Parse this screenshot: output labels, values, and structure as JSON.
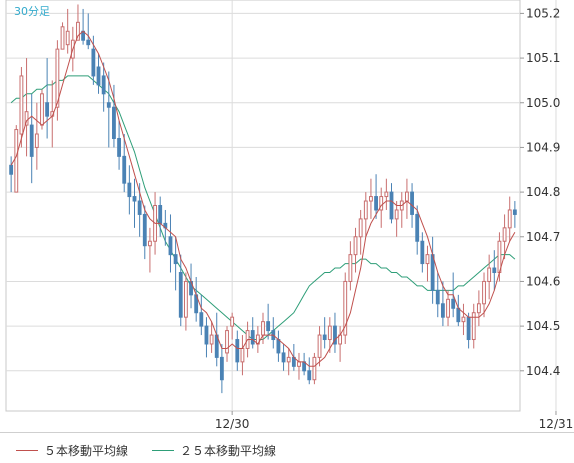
{
  "chart_data": {
    "type": "candlestick",
    "period_label": "30分足",
    "y_ticks": [
      105.2,
      105.1,
      105.0,
      104.9,
      104.8,
      104.7,
      104.6,
      104.5,
      104.4
    ],
    "y_tick_labels": [
      "105.2",
      "105.1",
      "105.0",
      "104.9",
      "104.8",
      "104.7",
      "104.6",
      "104.5",
      "104.4"
    ],
    "ylim": [
      104.31,
      105.23
    ],
    "x_tick_labels": [
      {
        "index": 43,
        "label": "12/30"
      },
      {
        "index": 106,
        "label": "12/31"
      }
    ],
    "colors": {
      "up": "#c86e6e",
      "down": "#4a82b4",
      "ma5": "#c0504d",
      "ma25": "#2e9e78",
      "period_label": "#33aacc",
      "grid": "#dcdcdc"
    },
    "candles": [
      [
        104.86,
        104.88,
        104.8,
        104.84
      ],
      [
        104.8,
        104.95,
        104.8,
        104.94
      ],
      [
        104.93,
        105.08,
        104.9,
        105.06
      ],
      [
        104.95,
        105.1,
        104.88,
        104.98
      ],
      [
        104.95,
        105.02,
        104.82,
        104.88
      ],
      [
        104.9,
        105.0,
        104.85,
        104.93
      ],
      [
        104.95,
        105.03,
        104.94,
        105.02
      ],
      [
        105.0,
        105.1,
        104.92,
        104.97
      ],
      [
        104.97,
        105.05,
        104.9,
        104.98
      ],
      [
        104.99,
        105.14,
        104.96,
        105.12
      ],
      [
        105.12,
        105.18,
        105.12,
        105.17
      ],
      [
        105.13,
        105.21,
        105.11,
        105.16
      ],
      [
        105.1,
        105.17,
        105.07,
        105.14
      ],
      [
        105.14,
        105.22,
        105.14,
        105.18
      ],
      [
        105.16,
        105.21,
        105.13,
        105.14
      ],
      [
        105.14,
        105.2,
        105.12,
        105.13
      ],
      [
        105.12,
        105.15,
        105.04,
        105.06
      ],
      [
        105.08,
        105.11,
        105.02,
        105.04
      ],
      [
        105.06,
        105.09,
        104.98,
        105.02
      ],
      [
        105.0,
        105.07,
        104.9,
        104.99
      ],
      [
        104.99,
        105.04,
        104.9,
        104.92
      ],
      [
        104.92,
        104.96,
        104.85,
        104.88
      ],
      [
        104.88,
        104.93,
        104.8,
        104.82
      ],
      [
        104.82,
        104.86,
        104.75,
        104.79
      ],
      [
        104.79,
        104.83,
        104.72,
        104.78
      ],
      [
        104.78,
        104.82,
        104.7,
        104.75
      ],
      [
        104.75,
        104.77,
        104.65,
        104.68
      ],
      [
        104.68,
        104.72,
        104.62,
        104.69
      ],
      [
        104.69,
        104.8,
        104.66,
        104.77
      ],
      [
        104.77,
        104.79,
        104.7,
        104.73
      ],
      [
        104.73,
        104.76,
        104.68,
        104.72
      ],
      [
        104.7,
        104.75,
        104.62,
        104.66
      ],
      [
        104.66,
        104.7,
        104.58,
        104.64
      ],
      [
        104.62,
        104.66,
        104.5,
        104.52
      ],
      [
        104.52,
        104.62,
        104.49,
        104.6
      ],
      [
        104.6,
        104.64,
        104.54,
        104.57
      ],
      [
        104.57,
        104.61,
        104.51,
        104.53
      ],
      [
        104.53,
        104.57,
        104.48,
        104.5
      ],
      [
        104.5,
        104.52,
        104.43,
        104.46
      ],
      [
        104.46,
        104.51,
        104.44,
        104.48
      ],
      [
        104.48,
        104.53,
        104.41,
        104.43
      ],
      [
        104.43,
        104.46,
        104.35,
        104.38
      ],
      [
        104.44,
        104.5,
        104.42,
        104.49
      ],
      [
        104.5,
        104.53,
        104.47,
        104.52
      ],
      [
        104.47,
        104.49,
        104.4,
        104.42
      ],
      [
        104.42,
        104.48,
        104.39,
        104.45
      ],
      [
        104.45,
        104.51,
        104.43,
        104.49
      ],
      [
        104.49,
        104.52,
        104.45,
        104.46
      ],
      [
        104.46,
        104.5,
        104.44,
        104.48
      ],
      [
        104.48,
        104.53,
        104.46,
        104.51
      ],
      [
        104.51,
        104.55,
        104.47,
        104.49
      ],
      [
        104.49,
        104.52,
        104.45,
        104.47
      ],
      [
        104.47,
        104.49,
        104.42,
        104.44
      ],
      [
        104.44,
        104.46,
        104.4,
        104.42
      ],
      [
        104.42,
        104.45,
        104.39,
        104.43
      ],
      [
        104.43,
        104.46,
        104.4,
        104.41
      ],
      [
        104.41,
        104.44,
        104.38,
        104.42
      ],
      [
        104.42,
        104.44,
        104.39,
        104.4
      ],
      [
        104.4,
        104.43,
        104.37,
        104.38
      ],
      [
        104.38,
        104.44,
        104.37,
        104.43
      ],
      [
        104.43,
        104.5,
        104.41,
        104.48
      ],
      [
        104.48,
        104.52,
        104.45,
        104.47
      ],
      [
        104.47,
        104.52,
        104.44,
        104.5
      ],
      [
        104.5,
        104.53,
        104.44,
        104.46
      ],
      [
        104.46,
        104.5,
        104.42,
        104.48
      ],
      [
        104.48,
        104.62,
        104.46,
        104.6
      ],
      [
        104.6,
        104.69,
        104.58,
        104.66
      ],
      [
        104.66,
        104.72,
        104.62,
        104.7
      ],
      [
        104.7,
        104.76,
        104.66,
        104.74
      ],
      [
        104.74,
        104.8,
        104.7,
        104.78
      ],
      [
        104.78,
        104.83,
        104.74,
        104.79
      ],
      [
        104.79,
        104.84,
        104.74,
        104.76
      ],
      [
        104.76,
        104.81,
        104.72,
        104.79
      ],
      [
        104.79,
        104.83,
        104.76,
        104.8
      ],
      [
        104.8,
        104.82,
        104.73,
        104.74
      ],
      [
        104.74,
        104.78,
        104.7,
        104.76
      ],
      [
        104.76,
        104.8,
        104.72,
        104.78
      ],
      [
        104.78,
        104.83,
        104.74,
        104.8
      ],
      [
        104.8,
        104.82,
        104.72,
        104.75
      ],
      [
        104.75,
        104.77,
        104.66,
        104.69
      ],
      [
        104.69,
        104.71,
        104.62,
        104.64
      ],
      [
        104.64,
        104.68,
        104.6,
        104.66
      ],
      [
        104.66,
        104.7,
        104.55,
        104.58
      ],
      [
        104.58,
        104.62,
        104.52,
        104.55
      ],
      [
        104.55,
        104.6,
        104.5,
        104.52
      ],
      [
        104.52,
        104.58,
        104.5,
        104.56
      ],
      [
        104.56,
        104.62,
        104.52,
        104.54
      ],
      [
        104.54,
        104.57,
        104.5,
        104.51
      ],
      [
        104.51,
        104.55,
        104.48,
        104.52
      ],
      [
        104.52,
        104.53,
        104.45,
        104.47
      ],
      [
        104.47,
        104.55,
        104.45,
        104.53
      ],
      [
        104.53,
        104.58,
        104.5,
        104.55
      ],
      [
        104.55,
        104.62,
        104.52,
        104.6
      ],
      [
        104.6,
        104.66,
        104.56,
        104.63
      ],
      [
        104.63,
        104.67,
        104.58,
        104.62
      ],
      [
        104.62,
        104.71,
        104.6,
        104.69
      ],
      [
        104.69,
        104.75,
        104.65,
        104.72
      ],
      [
        104.72,
        104.79,
        104.69,
        104.76
      ],
      [
        104.76,
        104.78,
        104.72,
        104.75
      ]
    ],
    "ma5": [
      104.86,
      104.88,
      104.92,
      104.96,
      104.97,
      104.96,
      104.95,
      104.96,
      104.97,
      105.0,
      105.04,
      105.08,
      105.12,
      105.15,
      105.16,
      105.15,
      105.13,
      105.11,
      105.08,
      105.05,
      105.01,
      104.96,
      104.92,
      104.88,
      104.84,
      104.8,
      104.76,
      104.74,
      104.73,
      104.73,
      104.72,
      104.71,
      104.7,
      104.65,
      104.63,
      104.6,
      104.57,
      104.54,
      104.53,
      104.51,
      104.48,
      104.45,
      104.45,
      104.46,
      104.45,
      104.45,
      104.47,
      104.47,
      104.46,
      104.48,
      104.48,
      104.48,
      104.47,
      104.46,
      104.45,
      104.43,
      104.42,
      104.42,
      104.41,
      104.41,
      104.42,
      104.43,
      104.45,
      104.47,
      104.48,
      104.5,
      104.53,
      104.58,
      104.63,
      104.7,
      104.73,
      104.75,
      104.77,
      104.78,
      104.78,
      104.77,
      104.77,
      104.78,
      104.77,
      104.76,
      104.73,
      104.7,
      104.66,
      104.62,
      104.59,
      104.57,
      104.57,
      104.54,
      104.53,
      104.52,
      104.52,
      104.52,
      104.53,
      104.55,
      104.58,
      104.62,
      104.66,
      104.69,
      104.71
    ],
    "ma25": [
      105.0,
      105.01,
      105.01,
      105.02,
      105.02,
      105.03,
      105.03,
      105.04,
      105.04,
      105.05,
      105.05,
      105.06,
      105.06,
      105.06,
      105.06,
      105.06,
      105.05,
      105.04,
      105.03,
      105.02,
      105.0,
      104.98,
      104.95,
      104.92,
      104.89,
      104.85,
      104.81,
      104.78,
      104.75,
      104.72,
      104.69,
      104.67,
      104.65,
      104.63,
      104.61,
      104.59,
      104.58,
      104.57,
      104.56,
      104.55,
      104.54,
      104.53,
      104.52,
      104.51,
      104.5,
      104.49,
      104.48,
      104.47,
      104.47,
      104.47,
      104.48,
      104.49,
      104.5,
      104.51,
      104.52,
      104.53,
      104.55,
      104.57,
      104.59,
      104.6,
      104.61,
      104.62,
      104.62,
      104.63,
      104.63,
      104.64,
      104.64,
      104.64,
      104.65,
      104.65,
      104.64,
      104.64,
      104.63,
      104.63,
      104.62,
      104.62,
      104.61,
      104.61,
      104.6,
      104.59,
      104.59,
      104.58,
      104.58,
      104.58,
      104.58,
      104.58,
      104.58,
      104.59,
      104.59,
      104.6,
      104.61,
      104.62,
      104.63,
      104.64,
      104.65,
      104.66,
      104.66,
      104.66,
      104.65
    ]
  },
  "legend": {
    "ma5_label": "５本移動平均線",
    "ma25_label": "２５本移動平均線"
  }
}
